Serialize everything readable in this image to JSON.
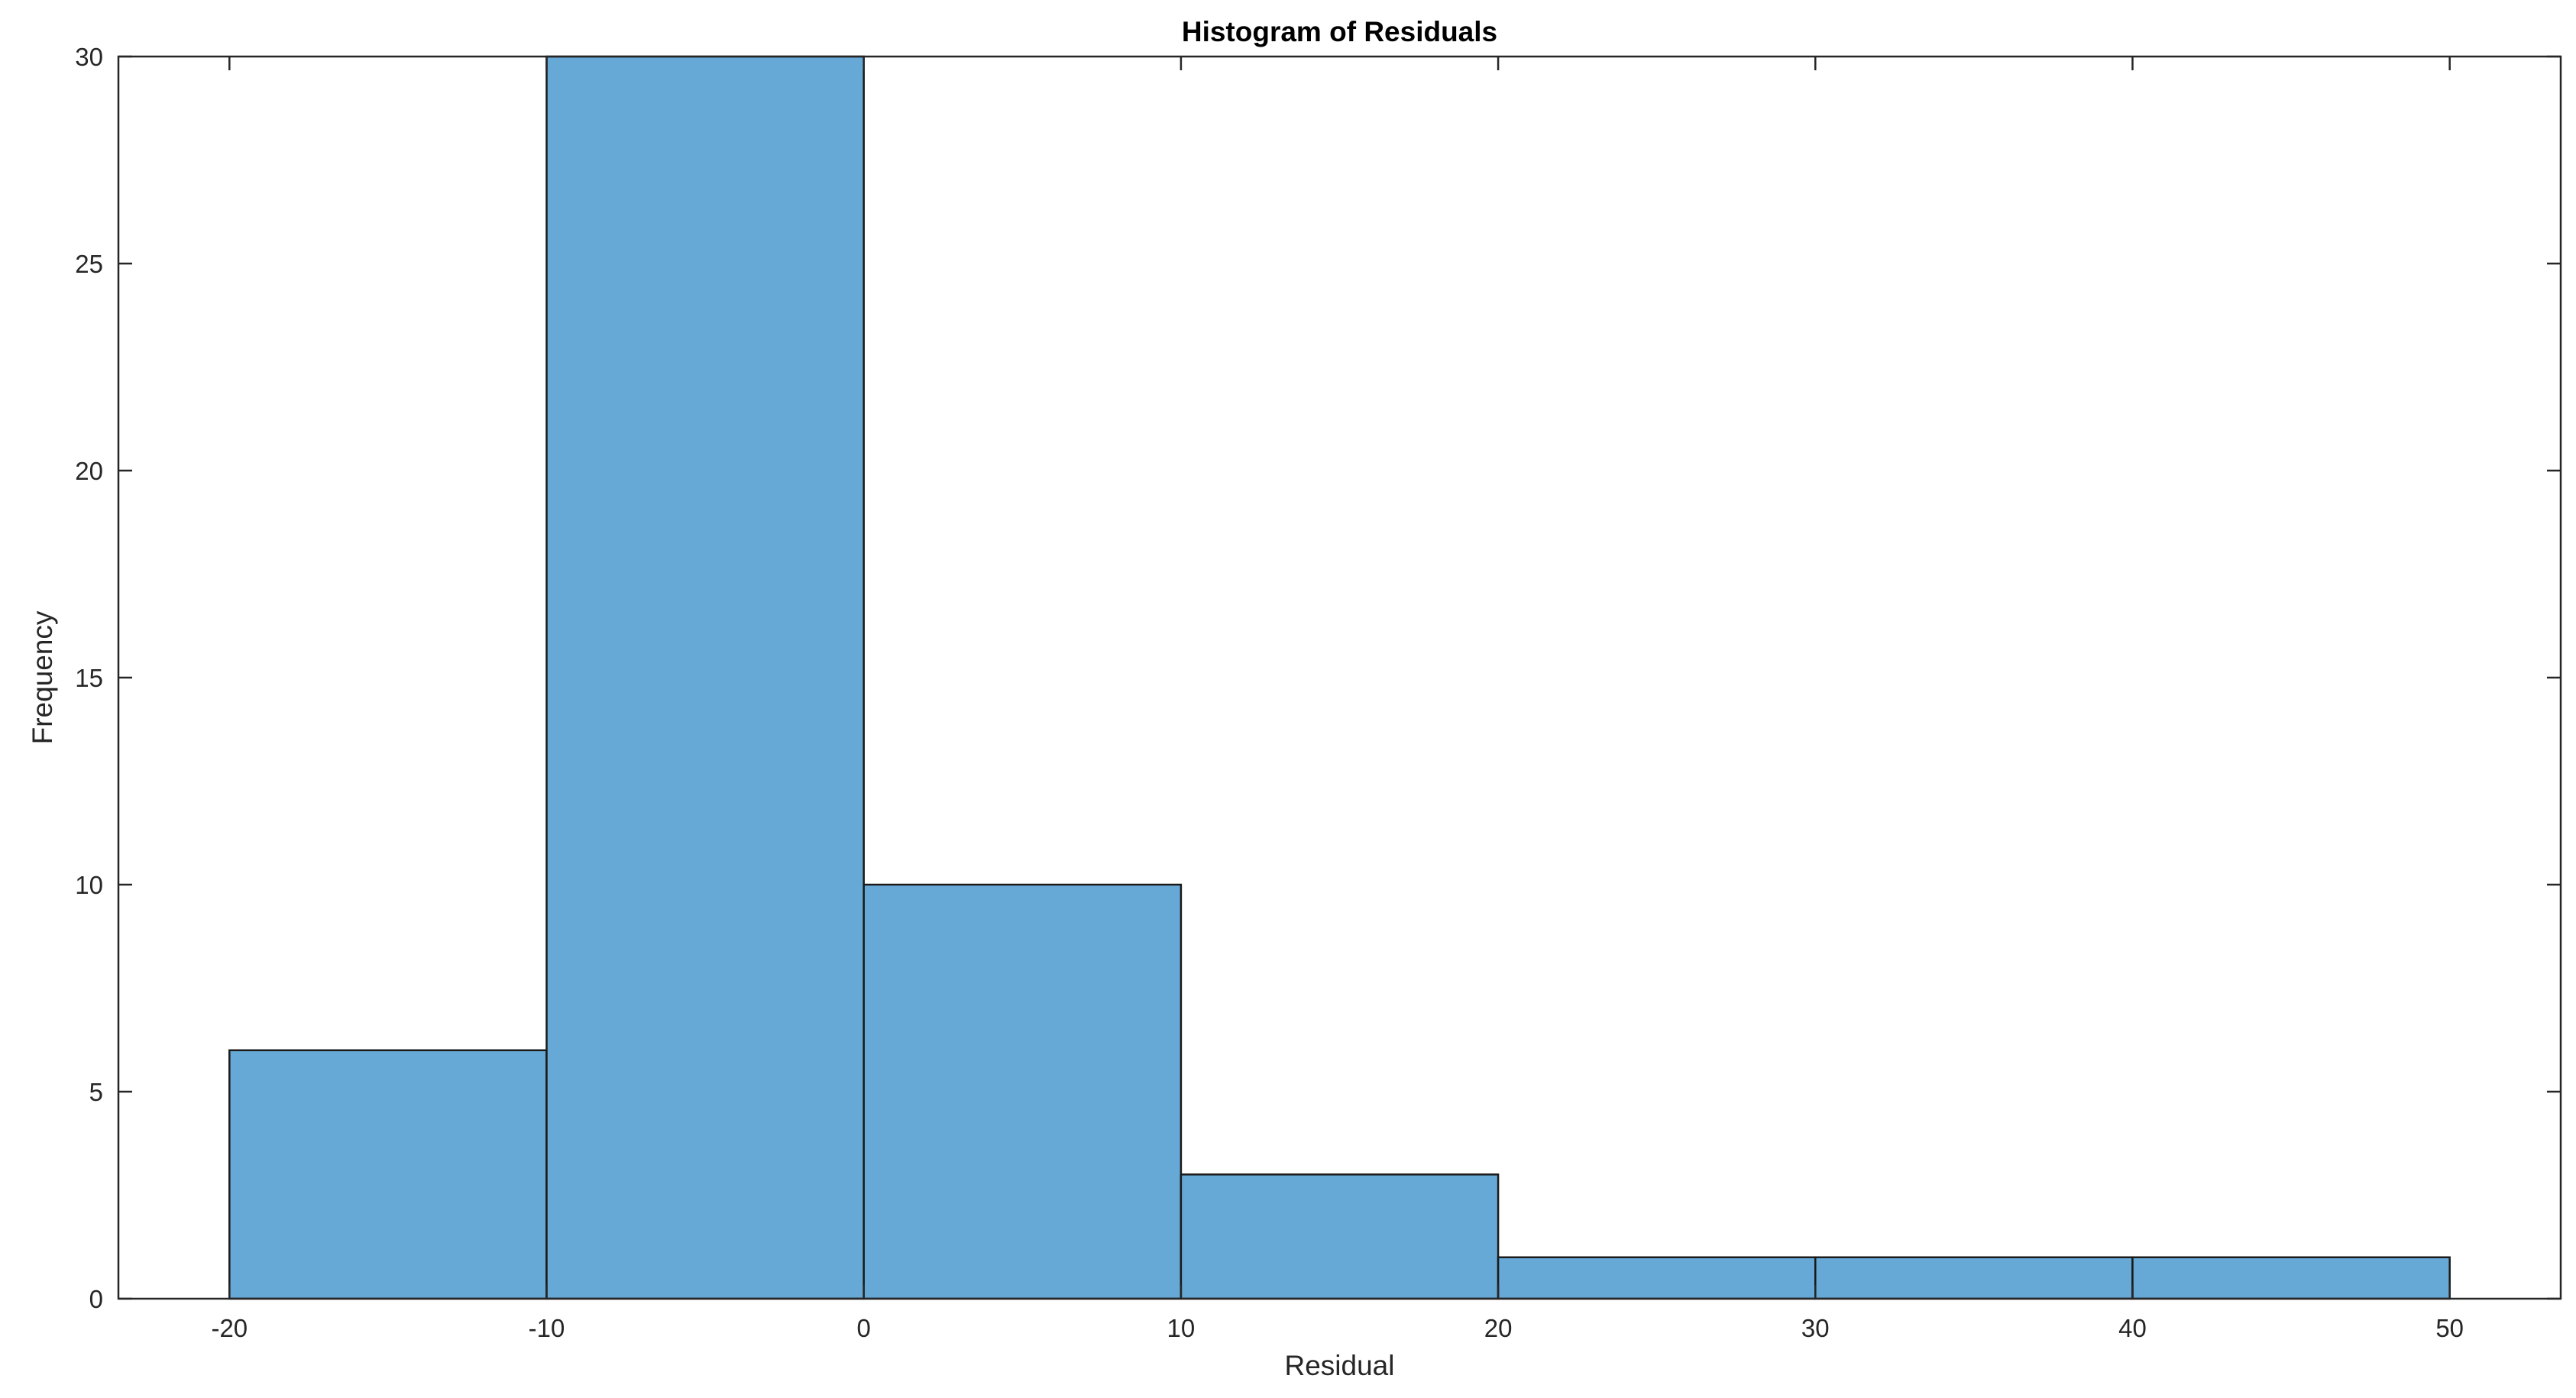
{
  "chart_data": {
    "type": "bar",
    "title": "Histogram of Residuals",
    "xlabel": "Residual",
    "ylabel": "Frequency",
    "bin_edges": [
      -20,
      -10,
      0,
      10,
      20,
      30,
      40,
      50
    ],
    "values": [
      6,
      30,
      10,
      3,
      1,
      1,
      1
    ],
    "xlim": [
      -23.5,
      53.5
    ],
    "ylim": [
      0,
      30
    ],
    "xticks": [
      -20,
      -10,
      0,
      10,
      20,
      30,
      40,
      50
    ],
    "yticks": [
      0,
      5,
      10,
      15,
      20,
      25,
      30
    ],
    "grid": false,
    "legend": "none",
    "colors": {
      "bar_fill": "#67A9D6",
      "bar_edge": "#1A1A1A",
      "axis": "#262626",
      "background": "#FFFFFF"
    }
  }
}
